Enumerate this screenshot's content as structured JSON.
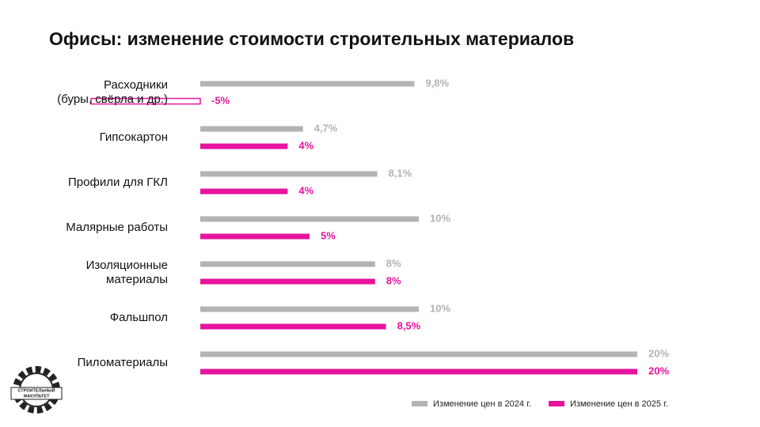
{
  "chart_data": {
    "type": "hbar",
    "title": "Офисы: изменение стоимости строительных материалов",
    "categories": [
      "Расходники\n(буры, свёрла и др.)",
      "Гипсокартон",
      "Профили для ГКЛ",
      "Малярные работы",
      "Изоляционные\nматериалы",
      "Фальшпол",
      "Пиломатериалы"
    ],
    "series": [
      {
        "name": "Изменение цен в 2024 г.",
        "color": "#b3b3b3",
        "values": [
          9.8,
          4.7,
          8.1,
          10,
          8,
          10,
          20
        ],
        "value_labels": [
          "9,8%",
          "4,7%",
          "8,1%",
          "10%",
          "8%",
          "10%",
          "20%"
        ]
      },
      {
        "name": "Изменение цен в 2025 г.",
        "color": "#e6149e",
        "values": [
          -5,
          4,
          4,
          5,
          8,
          8.5,
          20
        ],
        "value_labels": [
          "-5%",
          "4%",
          "4%",
          "5%",
          "8%",
          "8,5%",
          "20%"
        ]
      }
    ],
    "xlim": [
      -5,
      20
    ],
    "legend": "bottom-right",
    "logo": [
      "СТРОИТЕЛЬНЫЙ",
      "ФАКУЛЬТЕТ"
    ]
  }
}
